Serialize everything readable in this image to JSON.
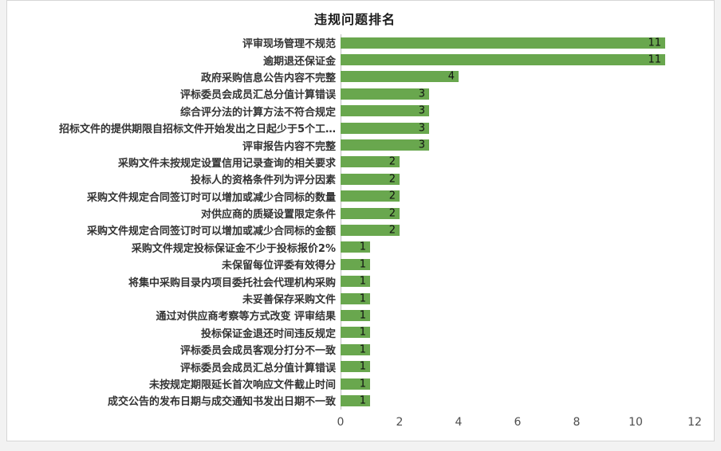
{
  "chart_data": {
    "type": "bar",
    "orientation": "horizontal",
    "title": "违规问题排名",
    "categories": [
      "评审现场管理不规范",
      "逾期退还保证金",
      "政府采购信息公告内容不完整",
      "评标委员会成员汇总分值计算错误",
      "综合评分法的计算方法不符合规定",
      "招标文件的提供期限自招标文件开始发出之日起少于5个工…",
      "评审报告内容不完整",
      "采购文件未按规定设置信用记录查询的相关要求",
      "投标人的资格条件列为评分因素",
      "采购文件规定合同签订时可以增加或减少合同标的数量",
      "对供应商的质疑设置限定条件",
      "采购文件规定合同签订时可以增加或减少合同标的金额",
      "采购文件规定投标保证金不少于投标报价2%",
      "未保留每位评委有效得分",
      "将集中采购目录内项目委托社会代理机构采购",
      "未妥善保存采购文件",
      "通过对供应商考察等方式改变 评审结果",
      "投标保证金退还时间违反规定",
      "评标委员会成员客观分打分不一致",
      "评标委员会成员汇总分值计算错误",
      "未按规定期限延长首次响应文件截止时间",
      "成交公告的发布日期与成交通知书发出日期不一致"
    ],
    "values": [
      11,
      11,
      4,
      3,
      3,
      3,
      3,
      2,
      2,
      2,
      2,
      2,
      1,
      1,
      1,
      1,
      1,
      1,
      1,
      1,
      1,
      1
    ],
    "xlim": [
      0,
      12
    ],
    "x_ticks": [
      0,
      2,
      4,
      6,
      8,
      10,
      12
    ],
    "data_labels": true,
    "bar_color": "#69a74e",
    "legend": "none",
    "grid": "off"
  }
}
